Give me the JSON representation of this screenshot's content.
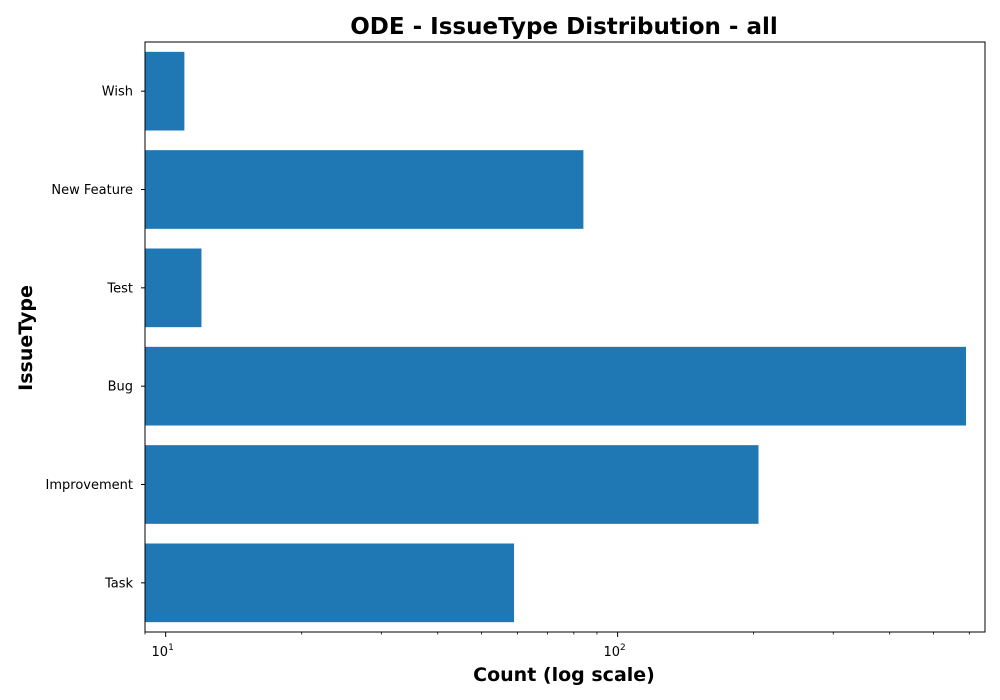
{
  "chart_data": {
    "type": "bar",
    "orientation": "horizontal",
    "title": "ODE - IssueType Distribution - all",
    "xlabel": "Count (log scale)",
    "ylabel": "IssueType",
    "x_scale": "log",
    "xlim": [
      9,
      650
    ],
    "x_ticks": [
      {
        "value": 10,
        "base": "10",
        "exp": "1"
      },
      {
        "value": 100,
        "base": "10",
        "exp": "2"
      }
    ],
    "categories": [
      "Task",
      "Improvement",
      "Bug",
      "Test",
      "New Feature",
      "Wish"
    ],
    "values": [
      59,
      205,
      590,
      12,
      84,
      11
    ],
    "bar_color": "#1f77b4",
    "grid": false,
    "legend": "none"
  }
}
